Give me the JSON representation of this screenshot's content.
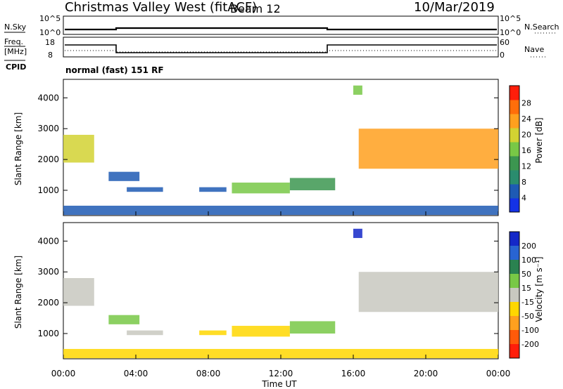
{
  "header": {
    "station": "Christmas Valley West (fitACF)",
    "beam": "Beam 12",
    "date": "10/Mar/2019"
  },
  "top_panel": {
    "left_label": "N.Sky",
    "left_ticks": [
      "10^5",
      "10^0"
    ],
    "right_ticks": [
      "10^5",
      "10^0"
    ],
    "right_label": "N.Search"
  },
  "freq_panel": {
    "left_label_1": "Freq.",
    "left_label_2": "[MHz]",
    "left_ticks": [
      "18",
      "8"
    ],
    "right_ticks": [
      "60",
      "0"
    ],
    "right_label": "Nave"
  },
  "cpid_panel": {
    "label": "CPID",
    "text": "normal (fast) 151 RF"
  },
  "colors": {
    "power_scale": [
      "#1432e6",
      "#1e5ab4",
      "#2a8c6e",
      "#3c9650",
      "#78c846",
      "#d2d232",
      "#ffa01e",
      "#ff6e0a",
      "#ff1e0a"
    ],
    "velocity_scale": [
      "#1428c8",
      "#2864d2",
      "#2a8250",
      "#78c846",
      "#c8c8c0",
      "#ffd700",
      "#ffa01e",
      "#ff5a0a",
      "#ff1e0a"
    ]
  },
  "chart_data": [
    {
      "type": "heatmap",
      "title": "",
      "xlabel": "",
      "ylabel": "Slant Range [km]",
      "x_ticks": [
        "00:00",
        "04:00",
        "08:00",
        "12:00",
        "16:00",
        "20:00",
        "00:00"
      ],
      "y_ticks": [
        "1000",
        "2000",
        "3000",
        "4000"
      ],
      "xlim": [
        0,
        24
      ],
      "ylim": [
        180,
        4600
      ],
      "colorbar": {
        "label": "Power [dB]",
        "ticks": [
          "4",
          "8",
          "12",
          "16",
          "20",
          "24",
          "28"
        ],
        "range": [
          0,
          30
        ]
      },
      "echo_regions": [
        {
          "t0": 0.0,
          "t1": 1.7,
          "r0": 1900,
          "r1": 2800,
          "value": 18
        },
        {
          "t0": 2.5,
          "t1": 4.2,
          "r0": 1300,
          "r1": 1600,
          "value": 6
        },
        {
          "t0": 3.5,
          "t1": 5.5,
          "r0": 950,
          "r1": 1100,
          "value": 6
        },
        {
          "t0": 7.5,
          "t1": 9.0,
          "r0": 950,
          "r1": 1100,
          "value": 6
        },
        {
          "t0": 9.3,
          "t1": 12.5,
          "r0": 900,
          "r1": 1250,
          "value": 16
        },
        {
          "t0": 12.5,
          "t1": 15.0,
          "r0": 1000,
          "r1": 1400,
          "value": 10
        },
        {
          "t0": 16.0,
          "t1": 16.5,
          "r0": 4100,
          "r1": 4400,
          "value": 16
        },
        {
          "t0": 16.3,
          "t1": 24.0,
          "r0": 1700,
          "r1": 3000,
          "value": 20
        },
        {
          "t0": 0.0,
          "t1": 24.0,
          "r0": 200,
          "r1": 500,
          "value": 6
        }
      ]
    },
    {
      "type": "heatmap",
      "title": "",
      "xlabel": "Time UT",
      "ylabel": "Slant Range [km]",
      "x_ticks": [
        "00:00",
        "04:00",
        "08:00",
        "12:00",
        "16:00",
        "20:00",
        "00:00"
      ],
      "y_ticks": [
        "1000",
        "2000",
        "3000",
        "4000"
      ],
      "xlim": [
        0,
        24
      ],
      "ylim": [
        180,
        4600
      ],
      "colorbar": {
        "label": "Velocity [m s⁻¹]",
        "ticks": [
          "200",
          "100",
          "50",
          "15",
          "-15",
          "-50",
          "-100",
          "-200"
        ],
        "range": [
          -250,
          250
        ]
      },
      "echo_regions": [
        {
          "t0": 0.0,
          "t1": 1.7,
          "r0": 1900,
          "r1": 2800,
          "value": 0
        },
        {
          "t0": 2.5,
          "t1": 4.2,
          "r0": 1300,
          "r1": 1600,
          "value": 40
        },
        {
          "t0": 3.5,
          "t1": 5.5,
          "r0": 950,
          "r1": 1100,
          "value": 10
        },
        {
          "t0": 7.5,
          "t1": 9.0,
          "r0": 950,
          "r1": 1100,
          "value": -40
        },
        {
          "t0": 9.3,
          "t1": 12.5,
          "r0": 900,
          "r1": 1250,
          "value": -80
        },
        {
          "t0": 12.5,
          "t1": 15.0,
          "r0": 1000,
          "r1": 1400,
          "value": 30
        },
        {
          "t0": 16.0,
          "t1": 16.5,
          "r0": 4100,
          "r1": 4400,
          "value": 220
        },
        {
          "t0": 16.3,
          "t1": 24.0,
          "r0": 1700,
          "r1": 3000,
          "value": 0
        },
        {
          "t0": 0.0,
          "t1": 24.0,
          "r0": 200,
          "r1": 500,
          "value": -30
        }
      ]
    }
  ]
}
